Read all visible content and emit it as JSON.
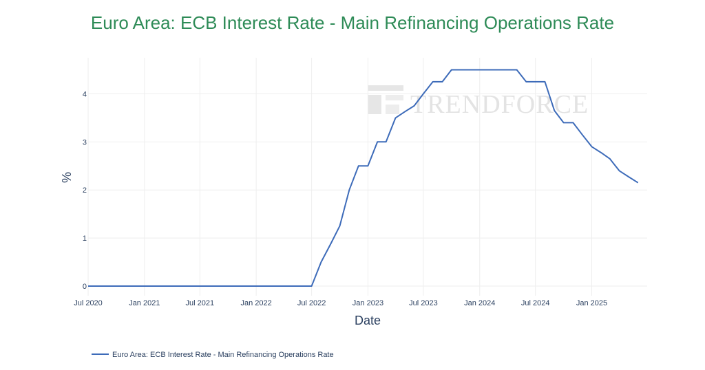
{
  "colors": {
    "title": "#2e8b57",
    "line": "#3d6bb9",
    "grid": "#eeeeee",
    "text": "#2a3f5f"
  },
  "watermark": "TRENDFORCE",
  "chart_data": {
    "type": "line",
    "title": "Euro Area: ECB Interest Rate - Main Refinancing Operations Rate",
    "xlabel": "Date",
    "ylabel": "%",
    "ylim": [
      -0.2,
      4.75
    ],
    "xlim": [
      "2020-07-01",
      "2025-07-01"
    ],
    "grid": true,
    "legend_position": "bottom-left",
    "y_ticks": [
      0,
      1,
      2,
      3,
      4
    ],
    "x_ticks": [
      {
        "date": "2020-07-01",
        "label": "Jul 2020"
      },
      {
        "date": "2021-01-01",
        "label": "Jan 2021"
      },
      {
        "date": "2021-07-01",
        "label": "Jul 2021"
      },
      {
        "date": "2022-01-01",
        "label": "Jan 2022"
      },
      {
        "date": "2022-07-01",
        "label": "Jul 2022"
      },
      {
        "date": "2023-01-01",
        "label": "Jan 2023"
      },
      {
        "date": "2023-07-01",
        "label": "Jul 2023"
      },
      {
        "date": "2024-01-01",
        "label": "Jan 2024"
      },
      {
        "date": "2024-07-01",
        "label": "Jul 2024"
      },
      {
        "date": "2025-01-01",
        "label": "Jan 2025"
      }
    ],
    "series": [
      {
        "name": "Euro Area: ECB Interest Rate - Main Refinancing Operations Rate",
        "x": [
          "2020-06-01",
          "2022-07-01",
          "2022-08-01",
          "2022-09-01",
          "2022-10-01",
          "2022-11-01",
          "2022-12-01",
          "2023-01-01",
          "2023-02-01",
          "2023-03-01",
          "2023-04-01",
          "2023-05-01",
          "2023-06-01",
          "2023-07-01",
          "2023-08-01",
          "2023-09-01",
          "2023-10-01",
          "2024-05-01",
          "2024-06-01",
          "2024-08-01",
          "2024-09-01",
          "2024-10-01",
          "2024-11-01",
          "2024-12-01",
          "2025-01-01",
          "2025-02-01",
          "2025-03-01",
          "2025-04-01",
          "2025-05-01",
          "2025-06-01"
        ],
        "values": [
          0,
          0,
          0.5,
          0.875,
          1.25,
          2.0,
          2.5,
          2.5,
          3.0,
          3.0,
          3.5,
          3.625,
          3.75,
          4.0,
          4.25,
          4.25,
          4.5,
          4.5,
          4.25,
          4.25,
          3.65,
          3.4,
          3.4,
          3.15,
          2.9,
          2.775,
          2.65,
          2.4,
          2.275,
          2.15
        ]
      }
    ]
  }
}
